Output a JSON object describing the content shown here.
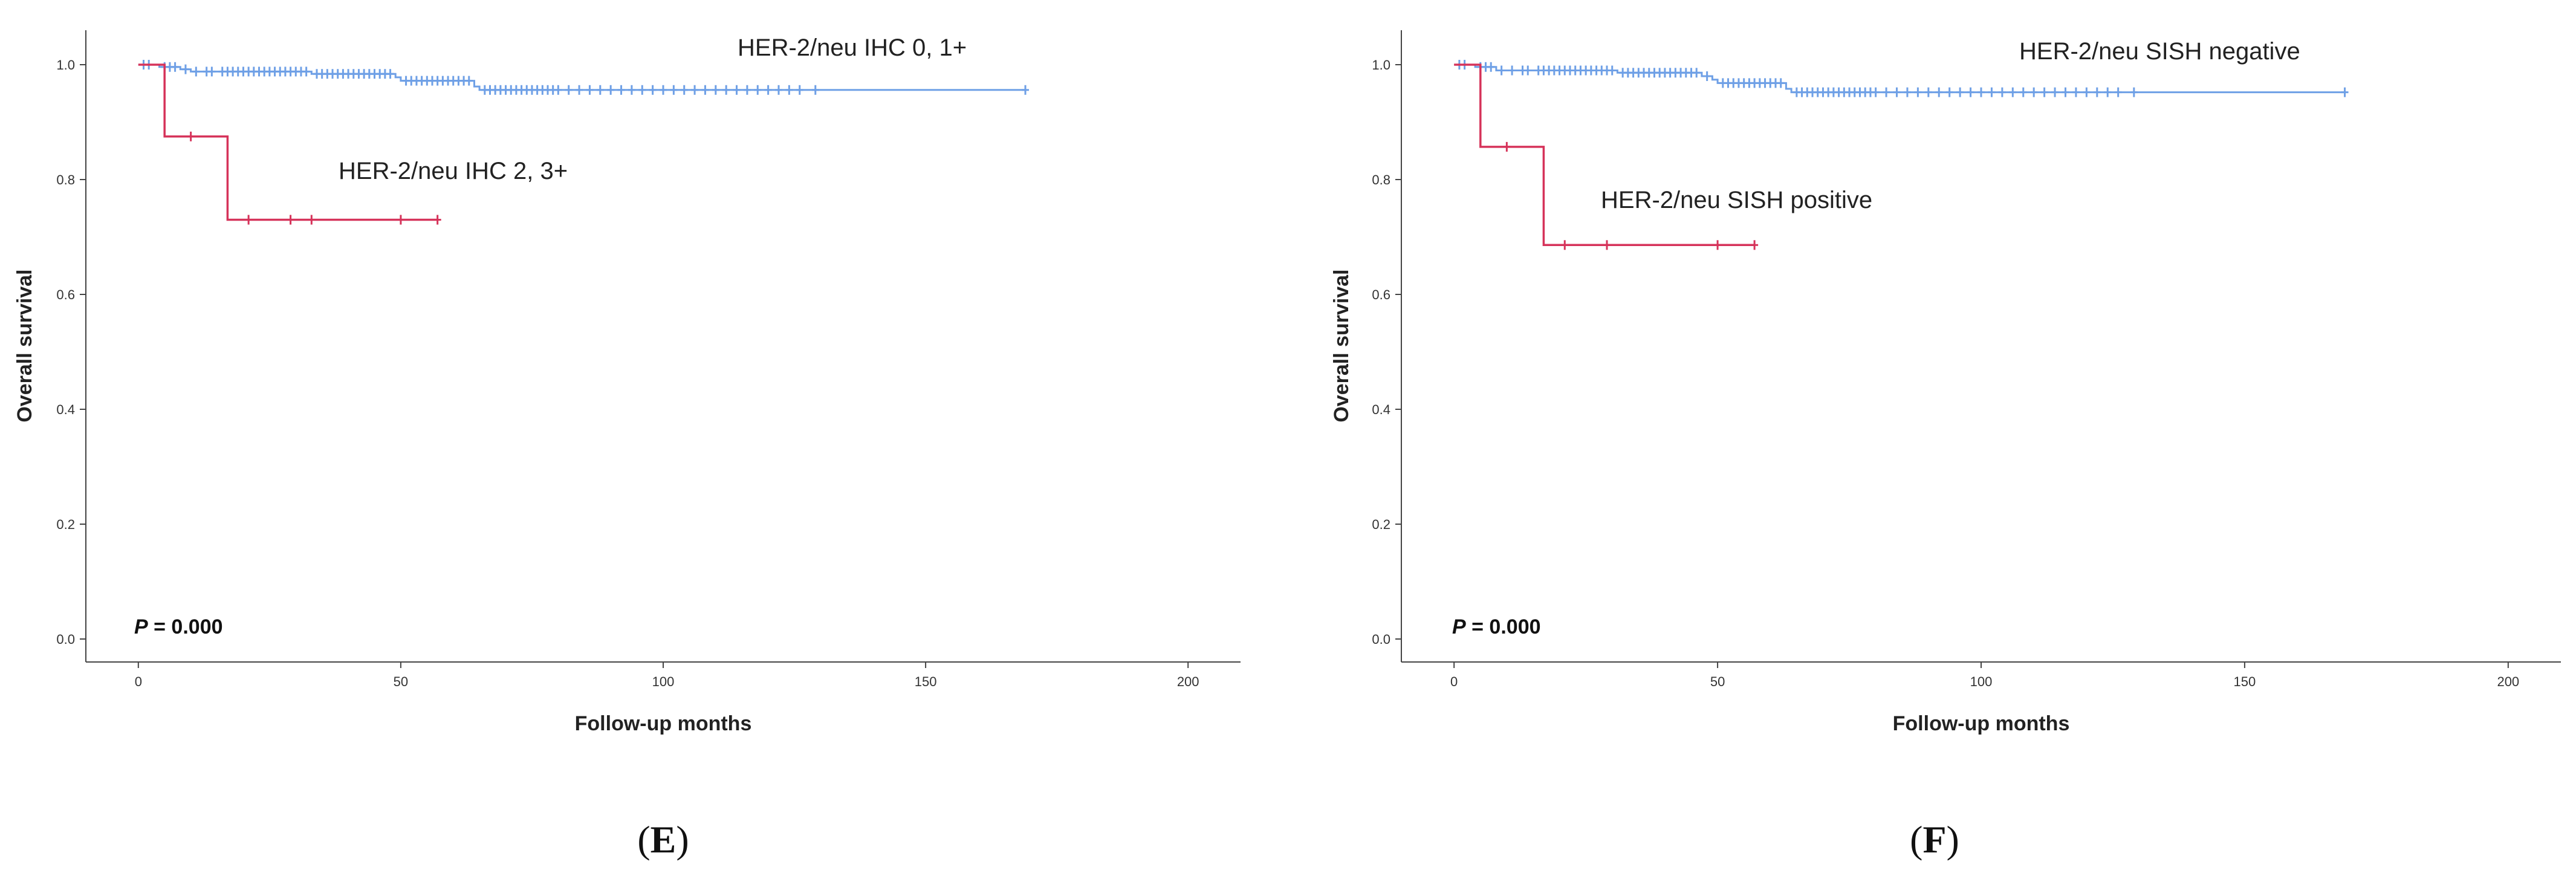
{
  "chart_data": [
    {
      "panel": "(E)",
      "panel_letter": "E",
      "type": "line",
      "subtype": "kaplan-meier",
      "xlabel": "Follow-up months",
      "ylabel": "Overall survival",
      "xlim": [
        -10,
        210
      ],
      "ylim": [
        -0.04,
        1.06
      ],
      "xticks": [
        0,
        50,
        100,
        150,
        200
      ],
      "yticks": [
        0.0,
        0.2,
        0.4,
        0.6,
        0.8,
        1.0
      ],
      "xtick_labels": [
        "0",
        "50",
        "100",
        "150",
        "200"
      ],
      "ytick_labels": [
        "0.0",
        "0.2",
        "0.4",
        "0.6",
        "0.8",
        "1.0"
      ],
      "annotation": {
        "p_symbol": "P",
        "p_text": " = 0.000"
      },
      "series": [
        {
          "name": "HER-2/neu IHC 0, 1+",
          "color": "#6fa0e6",
          "steps": [
            [
              0,
              1.0
            ],
            [
              4,
              0.996
            ],
            [
              8,
              0.992
            ],
            [
              10,
              0.988
            ],
            [
              33,
              0.984
            ],
            [
              49,
              0.978
            ],
            [
              50,
              0.972
            ],
            [
              64,
              0.962
            ],
            [
              65,
              0.956
            ],
            [
              169,
              0.956
            ]
          ],
          "censored_x": [
            1,
            2,
            5,
            6,
            7,
            9,
            11,
            13,
            14,
            16,
            17,
            18,
            19,
            20,
            21,
            22,
            23,
            24,
            25,
            26,
            27,
            28,
            29,
            30,
            31,
            32,
            34,
            35,
            36,
            37,
            38,
            39,
            40,
            41,
            42,
            43,
            44,
            45,
            46,
            47,
            48,
            51,
            52,
            53,
            54,
            55,
            56,
            57,
            58,
            59,
            60,
            61,
            62,
            63,
            66,
            67,
            68,
            69,
            70,
            71,
            72,
            73,
            74,
            75,
            76,
            77,
            78,
            79,
            80,
            82,
            84,
            86,
            88,
            90,
            92,
            94,
            96,
            98,
            100,
            102,
            104,
            106,
            108,
            110,
            112,
            114,
            116,
            118,
            120,
            122,
            124,
            126,
            129,
            169
          ]
        },
        {
          "name": "HER-2/neu IHC 2, 3+",
          "color": "#d6335a",
          "steps": [
            [
              0,
              1.0
            ],
            [
              5,
              0.875
            ],
            [
              17,
              0.73
            ],
            [
              57,
              0.73
            ]
          ],
          "censored_x": [
            10,
            21,
            29,
            33,
            50,
            57
          ]
        }
      ]
    },
    {
      "panel": "(F)",
      "panel_letter": "F",
      "type": "line",
      "subtype": "kaplan-meier",
      "xlabel": "Follow-up months",
      "ylabel": "Overall survival",
      "xlim": [
        -10,
        210
      ],
      "ylim": [
        -0.04,
        1.06
      ],
      "xticks": [
        0,
        50,
        100,
        150,
        200
      ],
      "yticks": [
        0.0,
        0.2,
        0.4,
        0.6,
        0.8,
        1.0
      ],
      "xtick_labels": [
        "0",
        "50",
        "100",
        "150",
        "200"
      ],
      "ytick_labels": [
        "0.0",
        "0.2",
        "0.4",
        "0.6",
        "0.8",
        "1.0"
      ],
      "annotation": {
        "p_symbol": "P",
        "p_text": " = 0.000"
      },
      "series": [
        {
          "name": "HER-2/neu SISH negative",
          "color": "#6fa0e6",
          "steps": [
            [
              0,
              1.0
            ],
            [
              4,
              0.996
            ],
            [
              8,
              0.99
            ],
            [
              31,
              0.986
            ],
            [
              47,
              0.98
            ],
            [
              49,
              0.974
            ],
            [
              50,
              0.968
            ],
            [
              63,
              0.958
            ],
            [
              64,
              0.952
            ],
            [
              169,
              0.952
            ]
          ],
          "censored_x": [
            1,
            2,
            5,
            6,
            7,
            9,
            11,
            13,
            14,
            16,
            17,
            18,
            19,
            20,
            21,
            22,
            23,
            24,
            25,
            26,
            27,
            28,
            29,
            30,
            32,
            33,
            34,
            35,
            36,
            37,
            38,
            39,
            40,
            41,
            42,
            43,
            44,
            45,
            46,
            48,
            51,
            52,
            53,
            54,
            55,
            56,
            57,
            58,
            59,
            60,
            61,
            62,
            65,
            66,
            67,
            68,
            69,
            70,
            71,
            72,
            73,
            74,
            75,
            76,
            77,
            78,
            79,
            80,
            82,
            84,
            86,
            88,
            90,
            92,
            94,
            96,
            98,
            100,
            102,
            104,
            106,
            108,
            110,
            112,
            114,
            116,
            118,
            120,
            122,
            124,
            126,
            129,
            169
          ]
        },
        {
          "name": "HER-2/neu SISH positive",
          "color": "#d6335a",
          "steps": [
            [
              0,
              1.0
            ],
            [
              5,
              0.857
            ],
            [
              17,
              0.686
            ],
            [
              57,
              0.686
            ]
          ],
          "censored_x": [
            10,
            21,
            29,
            50,
            57
          ]
        }
      ]
    }
  ]
}
